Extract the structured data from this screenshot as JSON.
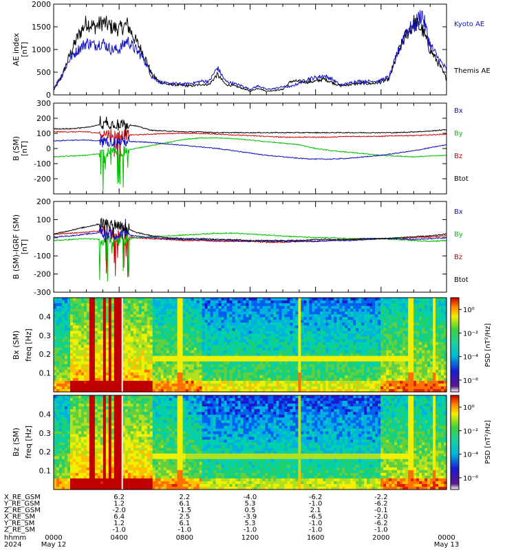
{
  "panels": {
    "ae": {
      "ylabel": "AE index",
      "yunit": "[nT]",
      "yticks": [
        "0",
        "500",
        "1000",
        "1500",
        "2000"
      ],
      "legend": [
        {
          "label": "Kyoto AE",
          "color": "#1010c0"
        },
        {
          "label": "Themis AE",
          "color": "#000000"
        }
      ]
    },
    "b": {
      "ylabel": "B (SM)",
      "yunit": "[nT]",
      "yticks": [
        "300",
        "200",
        "100",
        "0",
        "-100",
        "-200"
      ],
      "legend": [
        {
          "label": "Bx",
          "color": "#1010c0"
        },
        {
          "label": "By",
          "color": "#00c000"
        },
        {
          "label": "Bz",
          "color": "#d00000"
        },
        {
          "label": "Btot",
          "color": "#000000"
        }
      ]
    },
    "db": {
      "ylabel": "B (SM)-IGRF (SM)",
      "yunit": "[nT]",
      "yticks": [
        "200",
        "100",
        "0",
        "-100",
        "-200",
        "-300"
      ],
      "legend": [
        {
          "label": "Bx",
          "color": "#1010c0"
        },
        {
          "label": "By",
          "color": "#00c000"
        },
        {
          "label": "Bz",
          "color": "#d00000"
        },
        {
          "label": "Btot",
          "color": "#000000"
        }
      ]
    },
    "bx_spec": {
      "ylabel1": "Bx (SM)",
      "ylabel2": "freq [Hz]",
      "yticks": [
        "0.4",
        "0.3",
        "0.2",
        "0.1"
      ],
      "cbar_label": "PSD [nT²/Hz]",
      "cbar_ticks": [
        "10⁰",
        "10⁻²",
        "10⁻⁴",
        "10⁻⁶"
      ]
    },
    "bz_spec": {
      "ylabel1": "Bz (SM)",
      "ylabel2": "freq [Hz]",
      "yticks": [
        "0.4",
        "0.3",
        "0.2",
        "0.1"
      ],
      "cbar_label": "PSD [nT²/Hz]",
      "cbar_ticks": [
        "10⁰",
        "10⁻²",
        "10⁻⁴",
        "10⁻⁶"
      ]
    }
  },
  "ephemeris": {
    "rows": [
      {
        "label": "X_RE_GSM",
        "values": [
          "6.2",
          "2.2",
          "-4.0",
          "-6.2",
          "-2.2"
        ]
      },
      {
        "label": "Y_RE_GSM",
        "values": [
          "1.2",
          "6.1",
          "5.3",
          "-1.0",
          "-6.2"
        ]
      },
      {
        "label": "Z_RE_GSM",
        "values": [
          "-2.0",
          "-1.5",
          "0.5",
          "2.1",
          "-0.1"
        ]
      },
      {
        "label": "X_RE_SM",
        "values": [
          "6.4",
          "2.5",
          "-3.9",
          "-6.5",
          "-2.0"
        ]
      },
      {
        "label": "Y_RE_SM",
        "values": [
          "1.2",
          "6.1",
          "5.3",
          "-1.0",
          "-6.2"
        ]
      },
      {
        "label": "Z_RE_SM",
        "values": [
          "-1.0",
          "-1.0",
          "-1.0",
          "-1.0",
          "-1.0"
        ]
      }
    ],
    "time_label": "hhmm",
    "year": "2024",
    "start_time": "0000",
    "end_time": "0000",
    "start_date": "May 12",
    "end_date": "May 13",
    "time_ticks": [
      "0400",
      "0800",
      "1200",
      "1600",
      "2000"
    ]
  },
  "chart_data": [
    {
      "type": "line",
      "ylabel": "AE index [nT]",
      "xlabel": "hhmm",
      "x_hours": [
        0,
        0.5,
        1,
        1.5,
        2,
        2.5,
        3,
        3.5,
        4,
        4.5,
        5,
        5.5,
        6,
        6.5,
        7,
        7.5,
        8,
        8.5,
        9,
        9.5,
        10,
        10.5,
        11,
        11.5,
        12,
        12.5,
        13,
        13.5,
        14,
        14.5,
        15,
        15.5,
        16,
        16.5,
        17,
        17.5,
        18,
        18.5,
        19,
        19.5,
        20,
        20.5,
        21,
        21.5,
        22,
        22.5,
        23,
        23.5,
        24
      ],
      "ylim": [
        0,
        2000
      ],
      "series": [
        {
          "name": "Kyoto AE",
          "color": "#1010c0",
          "values": [
            150,
            450,
            800,
            1000,
            1150,
            1100,
            1150,
            1000,
            1000,
            1200,
            1000,
            800,
            400,
            280,
            250,
            250,
            240,
            260,
            300,
            300,
            600,
            300,
            250,
            200,
            120,
            200,
            120,
            140,
            180,
            180,
            260,
            350,
            380,
            420,
            350,
            220,
            250,
            300,
            300,
            300,
            320,
            400,
            900,
            1400,
            1500,
            1800,
            1100,
            800,
            550
          ]
        },
        {
          "name": "Themis AE",
          "color": "#000000",
          "values": [
            100,
            400,
            900,
            1300,
            1600,
            1500,
            1600,
            1500,
            1450,
            1550,
            1200,
            900,
            450,
            280,
            230,
            220,
            200,
            200,
            230,
            230,
            450,
            230,
            200,
            150,
            80,
            150,
            80,
            100,
            120,
            300,
            300,
            280,
            300,
            350,
            280,
            200,
            220,
            250,
            250,
            250,
            280,
            350,
            900,
            1300,
            1600,
            1450,
            1000,
            700,
            350
          ]
        }
      ]
    },
    {
      "type": "line",
      "ylabel": "B (SM) [nT]",
      "ylim": [
        -300,
        300
      ],
      "x_hours": [
        0,
        1,
        2,
        3,
        4,
        5,
        6,
        7,
        8,
        9,
        10,
        11,
        12,
        13,
        14,
        15,
        16,
        17,
        18,
        19,
        20,
        21,
        22,
        23,
        24
      ],
      "series": [
        {
          "name": "Bx",
          "color": "#1010c0",
          "values": [
            50,
            55,
            55,
            50,
            45,
            45,
            40,
            30,
            20,
            10,
            0,
            -15,
            -30,
            -45,
            -55,
            -65,
            -70,
            -70,
            -65,
            -55,
            -45,
            -30,
            -15,
            5,
            25
          ]
        },
        {
          "name": "By",
          "color": "#00c000",
          "values": [
            -55,
            -50,
            -45,
            -30,
            -20,
            0,
            20,
            40,
            60,
            70,
            70,
            65,
            55,
            45,
            35,
            25,
            0,
            -15,
            -25,
            -35,
            -45,
            -50,
            -55,
            -50,
            -45
          ]
        },
        {
          "name": "Bz",
          "color": "#d00000",
          "values": [
            110,
            110,
            110,
            100,
            90,
            90,
            95,
            100,
            100,
            100,
            95,
            90,
            85,
            80,
            75,
            75,
            75,
            75,
            80,
            80,
            80,
            85,
            85,
            90,
            95
          ]
        },
        {
          "name": "Btot",
          "color": "#000000",
          "values": [
            130,
            130,
            140,
            160,
            165,
            150,
            120,
            115,
            110,
            110,
            105,
            105,
            105,
            105,
            105,
            105,
            105,
            105,
            105,
            105,
            105,
            105,
            110,
            115,
            125
          ]
        }
      ]
    },
    {
      "type": "line",
      "ylabel": "B (SM)-IGRF (SM) [nT]",
      "ylim": [
        -300,
        200
      ],
      "x_hours": [
        0,
        1,
        2,
        3,
        4,
        5,
        6,
        7,
        8,
        9,
        10,
        11,
        12,
        13,
        14,
        15,
        16,
        17,
        18,
        19,
        20,
        21,
        22,
        23,
        24
      ],
      "series": [
        {
          "name": "Bx",
          "color": "#1010c0",
          "values": [
            5,
            10,
            20,
            30,
            20,
            10,
            0,
            -5,
            -10,
            -10,
            -15,
            -15,
            -20,
            -20,
            -20,
            -20,
            -20,
            -15,
            -15,
            -10,
            -5,
            -5,
            -10,
            -5,
            0
          ]
        },
        {
          "name": "By",
          "color": "#00c000",
          "values": [
            -15,
            -10,
            -5,
            -10,
            -20,
            0,
            5,
            10,
            15,
            20,
            25,
            25,
            20,
            15,
            10,
            5,
            0,
            0,
            -5,
            -5,
            -5,
            -10,
            -15,
            -20,
            -15
          ]
        },
        {
          "name": "Bz",
          "color": "#d00000",
          "values": [
            20,
            25,
            30,
            40,
            10,
            0,
            -5,
            -10,
            -15,
            -15,
            -20,
            -20,
            -20,
            -25,
            -25,
            -20,
            -20,
            -15,
            -10,
            -10,
            -5,
            -5,
            0,
            5,
            10
          ]
        },
        {
          "name": "Btot",
          "color": "#000000",
          "values": [
            20,
            40,
            60,
            80,
            70,
            30,
            10,
            0,
            -5,
            -5,
            -10,
            -10,
            -15,
            -15,
            -15,
            -15,
            -10,
            -10,
            -10,
            -5,
            -5,
            0,
            5,
            10,
            20
          ]
        }
      ]
    },
    {
      "type": "heatmap",
      "ylabel": "Bx (SM) freq [Hz]",
      "ylim": [
        0,
        0.5
      ],
      "colorbar_label": "PSD [nT²/Hz]",
      "colorscale": "log",
      "clim": [
        "1e-7",
        "1e1"
      ]
    },
    {
      "type": "heatmap",
      "ylabel": "Bz (SM) freq [Hz]",
      "ylim": [
        0,
        0.5
      ],
      "colorbar_label": "PSD [nT²/Hz]",
      "colorscale": "log",
      "clim": [
        "1e-7",
        "1e1"
      ]
    }
  ]
}
